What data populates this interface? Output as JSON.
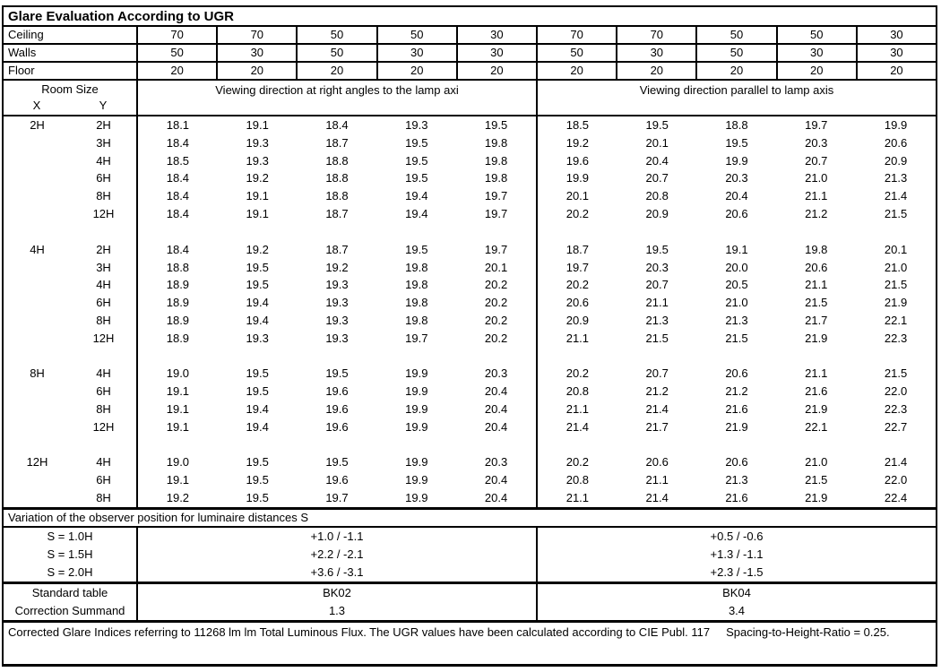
{
  "title": "Glare Evaluation According to UGR",
  "surface_rows": [
    {
      "label": "Ceiling",
      "values": [
        "70",
        "70",
        "50",
        "50",
        "30",
        "70",
        "70",
        "50",
        "50",
        "30"
      ]
    },
    {
      "label": "Walls",
      "values": [
        "50",
        "30",
        "50",
        "30",
        "30",
        "50",
        "30",
        "50",
        "30",
        "30"
      ]
    },
    {
      "label": "Floor",
      "values": [
        "20",
        "20",
        "20",
        "20",
        "20",
        "20",
        "20",
        "20",
        "20",
        "20"
      ]
    }
  ],
  "header": {
    "room_size": "Room Size",
    "x": "X",
    "y": "Y",
    "left_direction": "Viewing direction at right angles to the lamp axi",
    "right_direction": "Viewing direction parallel to lamp axis"
  },
  "ugr_blocks": [
    {
      "x": "2H",
      "rows": [
        {
          "y": "2H",
          "values": [
            "18.1",
            "19.1",
            "18.4",
            "19.3",
            "19.5",
            "18.5",
            "19.5",
            "18.8",
            "19.7",
            "19.9"
          ]
        },
        {
          "y": "3H",
          "values": [
            "18.4",
            "19.3",
            "18.7",
            "19.5",
            "19.8",
            "19.2",
            "20.1",
            "19.5",
            "20.3",
            "20.6"
          ]
        },
        {
          "y": "4H",
          "values": [
            "18.5",
            "19.3",
            "18.8",
            "19.5",
            "19.8",
            "19.6",
            "20.4",
            "19.9",
            "20.7",
            "20.9"
          ]
        },
        {
          "y": "6H",
          "values": [
            "18.4",
            "19.2",
            "18.8",
            "19.5",
            "19.8",
            "19.9",
            "20.7",
            "20.3",
            "21.0",
            "21.3"
          ]
        },
        {
          "y": "8H",
          "values": [
            "18.4",
            "19.1",
            "18.8",
            "19.4",
            "19.7",
            "20.1",
            "20.8",
            "20.4",
            "21.1",
            "21.4"
          ]
        },
        {
          "y": "12H",
          "values": [
            "18.4",
            "19.1",
            "18.7",
            "19.4",
            "19.7",
            "20.2",
            "20.9",
            "20.6",
            "21.2",
            "21.5"
          ]
        }
      ]
    },
    {
      "x": "4H",
      "rows": [
        {
          "y": "2H",
          "values": [
            "18.4",
            "19.2",
            "18.7",
            "19.5",
            "19.7",
            "18.7",
            "19.5",
            "19.1",
            "19.8",
            "20.1"
          ]
        },
        {
          "y": "3H",
          "values": [
            "18.8",
            "19.5",
            "19.2",
            "19.8",
            "20.1",
            "19.7",
            "20.3",
            "20.0",
            "20.6",
            "21.0"
          ]
        },
        {
          "y": "4H",
          "values": [
            "18.9",
            "19.5",
            "19.3",
            "19.8",
            "20.2",
            "20.2",
            "20.7",
            "20.5",
            "21.1",
            "21.5"
          ]
        },
        {
          "y": "6H",
          "values": [
            "18.9",
            "19.4",
            "19.3",
            "19.8",
            "20.2",
            "20.6",
            "21.1",
            "21.0",
            "21.5",
            "21.9"
          ]
        },
        {
          "y": "8H",
          "values": [
            "18.9",
            "19.4",
            "19.3",
            "19.8",
            "20.2",
            "20.9",
            "21.3",
            "21.3",
            "21.7",
            "22.1"
          ]
        },
        {
          "y": "12H",
          "values": [
            "18.9",
            "19.3",
            "19.3",
            "19.7",
            "20.2",
            "21.1",
            "21.5",
            "21.5",
            "21.9",
            "22.3"
          ]
        }
      ]
    },
    {
      "x": "8H",
      "rows": [
        {
          "y": "4H",
          "values": [
            "19.0",
            "19.5",
            "19.5",
            "19.9",
            "20.3",
            "20.2",
            "20.7",
            "20.6",
            "21.1",
            "21.5"
          ]
        },
        {
          "y": "6H",
          "values": [
            "19.1",
            "19.5",
            "19.6",
            "19.9",
            "20.4",
            "20.8",
            "21.2",
            "21.2",
            "21.6",
            "22.0"
          ]
        },
        {
          "y": "8H",
          "values": [
            "19.1",
            "19.4",
            "19.6",
            "19.9",
            "20.4",
            "21.1",
            "21.4",
            "21.6",
            "21.9",
            "22.3"
          ]
        },
        {
          "y": "12H",
          "values": [
            "19.1",
            "19.4",
            "19.6",
            "19.9",
            "20.4",
            "21.4",
            "21.7",
            "21.9",
            "22.1",
            "22.7"
          ]
        }
      ]
    },
    {
      "x": "12H",
      "rows": [
        {
          "y": "4H",
          "values": [
            "19.0",
            "19.5",
            "19.5",
            "19.9",
            "20.3",
            "20.2",
            "20.6",
            "20.6",
            "21.0",
            "21.4"
          ]
        },
        {
          "y": "6H",
          "values": [
            "19.1",
            "19.5",
            "19.6",
            "19.9",
            "20.4",
            "20.8",
            "21.1",
            "21.3",
            "21.5",
            "22.0"
          ]
        },
        {
          "y": "8H",
          "values": [
            "19.2",
            "19.5",
            "19.7",
            "19.9",
            "20.4",
            "21.1",
            "21.4",
            "21.6",
            "21.9",
            "22.4"
          ]
        }
      ]
    }
  ],
  "variation": {
    "heading": "Variation of the observer position for luminaire distances S",
    "rows": [
      {
        "label": "S = 1.0H",
        "left": "+1.0 / -1.1",
        "right": "+0.5 / -0.6"
      },
      {
        "label": "S = 1.5H",
        "left": "+2.2 / -2.1",
        "right": "+1.3 / -1.1"
      },
      {
        "label": "S = 2.0H",
        "left": "+3.6 / -3.1",
        "right": "+2.3 / -1.5"
      }
    ]
  },
  "summary": {
    "rows": [
      {
        "label": "Standard table",
        "left": "BK02",
        "right": "BK04"
      },
      {
        "label": "Correction Summand",
        "left": "1.3",
        "right": "3.4"
      }
    ]
  },
  "footer": "Corrected Glare Indices referring to 11268 lm lm Total Luminous Flux. The UGR values have been calculated according to CIE Publ. 117     Spacing-to-Height-Ratio = 0.25."
}
